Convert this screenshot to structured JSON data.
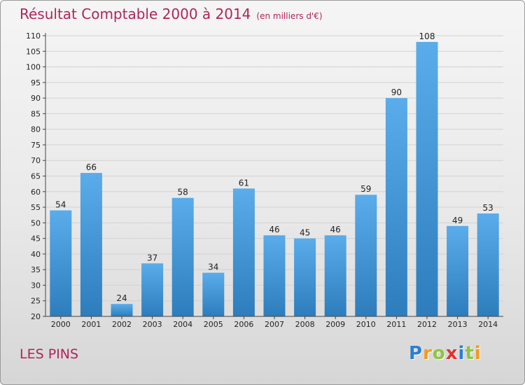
{
  "title": "Résultat Comptable 2000 à 2014",
  "subtitle": "(en milliers d'€)",
  "commune": "LES PINS",
  "logo": {
    "letters": [
      "P",
      "r",
      "o",
      "x",
      "i",
      "t",
      "i"
    ],
    "colors": [
      "#2a7fd4",
      "#f39a1a",
      "#8dc63f",
      "#e2342c",
      "#2a7fd4",
      "#8dc63f",
      "#f39a1a"
    ]
  },
  "colors": {
    "title": "#b0245a",
    "bar_top": "#5aacea",
    "bar_bottom": "#2d7dbc"
  },
  "chart_data": {
    "type": "bar",
    "categories": [
      "2000",
      "2001",
      "2002",
      "2003",
      "2004",
      "2005",
      "2006",
      "2007",
      "2008",
      "2009",
      "2010",
      "2011",
      "2012",
      "2013",
      "2014"
    ],
    "values": [
      54,
      66,
      24,
      37,
      58,
      34,
      61,
      46,
      45,
      46,
      59,
      90,
      108,
      49,
      53
    ],
    "ylim": [
      20,
      110
    ],
    "yticks": [
      20,
      25,
      30,
      35,
      40,
      45,
      50,
      55,
      60,
      65,
      70,
      75,
      80,
      85,
      90,
      95,
      100,
      105,
      110
    ],
    "grid": true,
    "data_labels": true
  }
}
